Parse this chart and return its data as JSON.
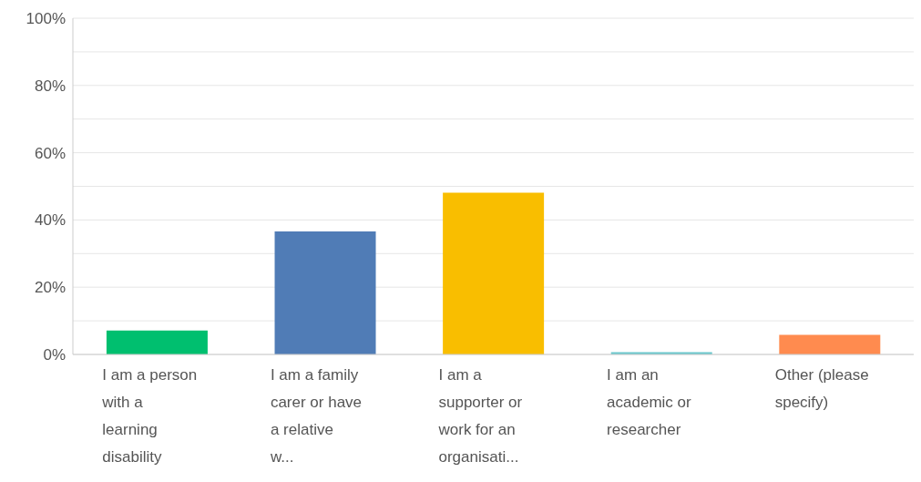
{
  "chart_data": {
    "type": "bar",
    "categories": [
      "I am a person with a learning disability",
      "I am a family carer or have a relative w...",
      "I am a supporter or work for an organisati...",
      "I am an academic or researcher",
      "Other (please specify)"
    ],
    "values": [
      7.1,
      36.6,
      48.1,
      0.7,
      5.8
    ],
    "colors": [
      "#00bf6f",
      "#507cb6",
      "#f9be00",
      "#6bc8cd",
      "#ff8b4f"
    ],
    "ylim": [
      0,
      100
    ],
    "yticks": [
      {
        "value": 0,
        "label": "0%"
      },
      {
        "value": 10,
        "label": null
      },
      {
        "value": 20,
        "label": "20%"
      },
      {
        "value": 30,
        "label": null
      },
      {
        "value": 40,
        "label": "40%"
      },
      {
        "value": 50,
        "label": null
      },
      {
        "value": 60,
        "label": "60%"
      },
      {
        "value": 70,
        "label": null
      },
      {
        "value": 80,
        "label": "80%"
      },
      {
        "value": 90,
        "label": null
      },
      {
        "value": 100,
        "label": "100%"
      }
    ],
    "grid": "y"
  }
}
